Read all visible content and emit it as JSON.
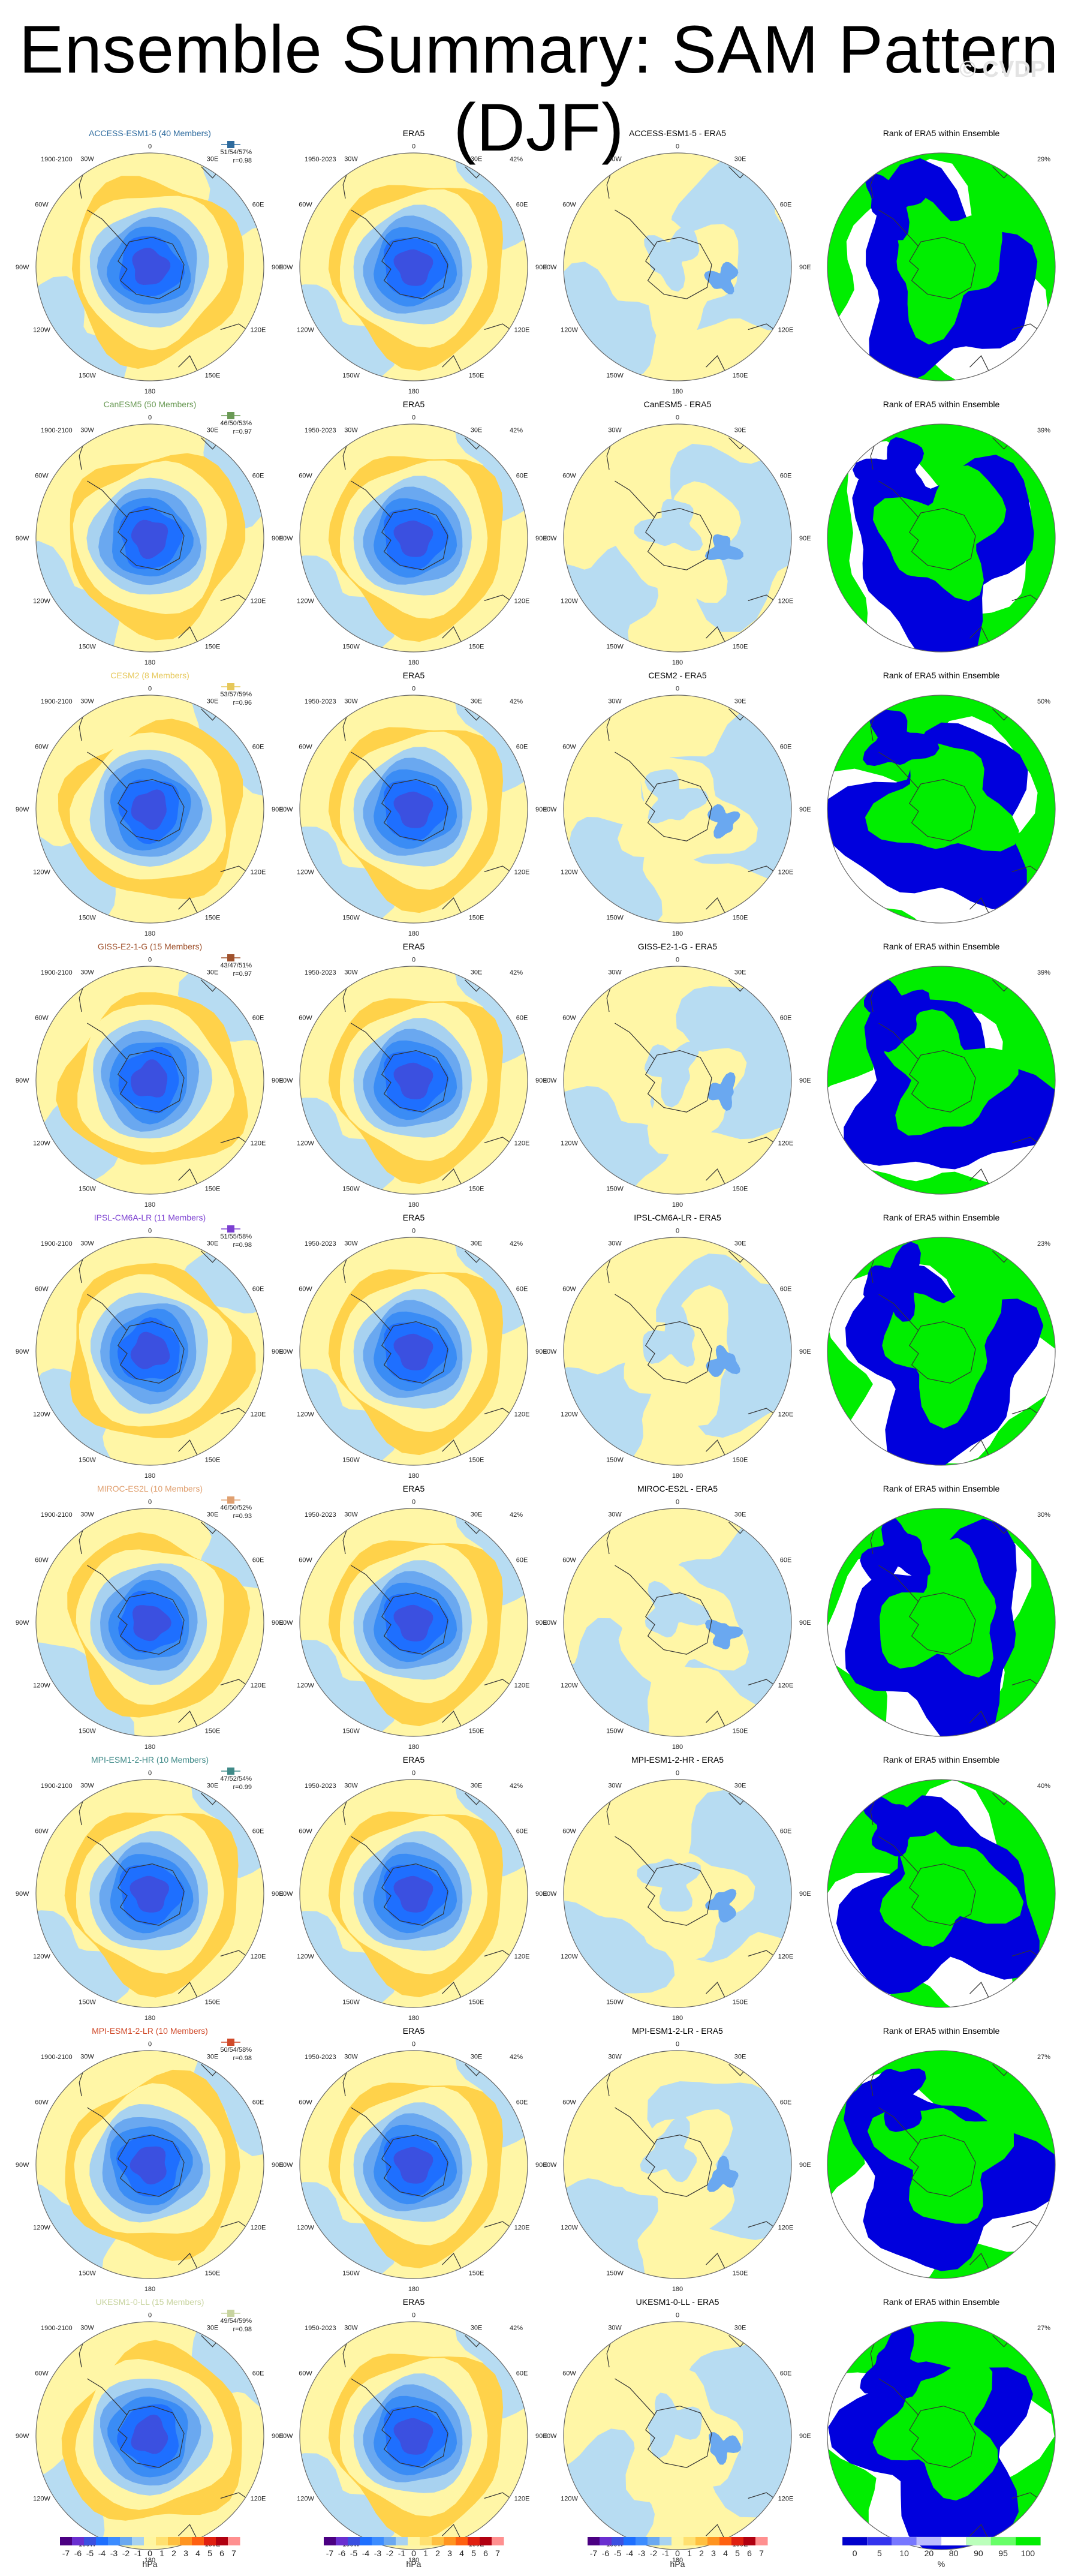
{
  "page": {
    "title": "Ensemble Summary: SAM Pattern (DJF)",
    "watermark": "© CVDP"
  },
  "colors": {
    "land_border": "#333333",
    "rank_high": "#00ee00",
    "rank_low": "#0000dd",
    "rank_mid": "#ffffff",
    "model_title_colors": [
      "#2e6b9e",
      "#6a9a55",
      "#e6c85a",
      "#a0522d",
      "#7b3fd1",
      "#e0a070",
      "#3f8a88",
      "#d04a2a",
      "#c8d4a0"
    ]
  },
  "panel_headers": {
    "era5": "ERA5",
    "rank": "Rank of ERA5 within Ensemble",
    "diff_suffix": " - ERA5"
  },
  "period_labels": {
    "model": "1900-2100",
    "era5": "1950-2023"
  },
  "longitude_labels": [
    "0",
    "30E",
    "60E",
    "90E",
    "120E",
    "150E",
    "180",
    "150W",
    "120W",
    "90W",
    "60W",
    "30W"
  ],
  "rows": [
    {
      "model_title": "ACCESS-ESM1-5 (40 Members)",
      "diff_title": "ACCESS-ESM1-5 - ERA5",
      "stats_pct": "51/54/57%",
      "stats_r": "r=0.98",
      "era5_pct": "42%",
      "rank_pct": "29%"
    },
    {
      "model_title": "CanESM5 (50 Members)",
      "diff_title": "CanESM5 - ERA5",
      "stats_pct": "46/50/53%",
      "stats_r": "r=0.97",
      "era5_pct": "42%",
      "rank_pct": "39%"
    },
    {
      "model_title": "CESM2 (8 Members)",
      "diff_title": "CESM2 - ERA5",
      "stats_pct": "53/57/59%",
      "stats_r": "r=0.96",
      "era5_pct": "42%",
      "rank_pct": "50%"
    },
    {
      "model_title": "GISS-E2-1-G (15 Members)",
      "diff_title": "GISS-E2-1-G - ERA5",
      "stats_pct": "43/47/51%",
      "stats_r": "r=0.97",
      "era5_pct": "42%",
      "rank_pct": "39%"
    },
    {
      "model_title": "IPSL-CM6A-LR (11 Members)",
      "diff_title": "IPSL-CM6A-LR - ERA5",
      "stats_pct": "51/55/58%",
      "stats_r": "r=0.98",
      "era5_pct": "42%",
      "rank_pct": "23%"
    },
    {
      "model_title": "MIROC-ES2L (10 Members)",
      "diff_title": "MIROC-ES2L - ERA5",
      "stats_pct": "46/50/52%",
      "stats_r": "r=0.93",
      "era5_pct": "42%",
      "rank_pct": "30%"
    },
    {
      "model_title": "MPI-ESM1-2-HR (10 Members)",
      "diff_title": "MPI-ESM1-2-HR - ERA5",
      "stats_pct": "47/52/54%",
      "stats_r": "r=0.99",
      "era5_pct": "42%",
      "rank_pct": "40%"
    },
    {
      "model_title": "MPI-ESM1-2-LR (10 Members)",
      "diff_title": "MPI-ESM1-2-LR - ERA5",
      "stats_pct": "50/54/58%",
      "stats_r": "r=0.98",
      "era5_pct": "42%",
      "rank_pct": "27%"
    },
    {
      "model_title": "UKESM1-0-LL (15 Members)",
      "diff_title": "UKESM1-0-LL - ERA5",
      "stats_pct": "49/54/59%",
      "stats_r": "r=0.98",
      "era5_pct": "42%",
      "rank_pct": "27%"
    }
  ],
  "colorbars": {
    "hpa_ticks": [
      "-7",
      "-6",
      "-5",
      "-4",
      "-3",
      "-2",
      "-1",
      "0",
      "1",
      "2",
      "3",
      "4",
      "5",
      "6",
      "7"
    ],
    "hpa_unit": "hPa",
    "hpa_colors": [
      "#4b0082",
      "#6a2fd0",
      "#3b50e0",
      "#1e6fff",
      "#3c8cff",
      "#6aa8f0",
      "#a8d2f0",
      "#fff6a0",
      "#ffe070",
      "#ffc040",
      "#ff9420",
      "#ff6010",
      "#e02010",
      "#b00010",
      "#ff9090"
    ],
    "rank_ticks": [
      "0",
      "5",
      "10",
      "20",
      "80",
      "90",
      "95",
      "100"
    ],
    "rank_unit": "%",
    "rank_colors": [
      "#0000cc",
      "#3333ee",
      "#7777ff",
      "#bbbbff",
      "#ffffff",
      "#bbffbb",
      "#66ff66",
      "#00ee00"
    ]
  }
}
